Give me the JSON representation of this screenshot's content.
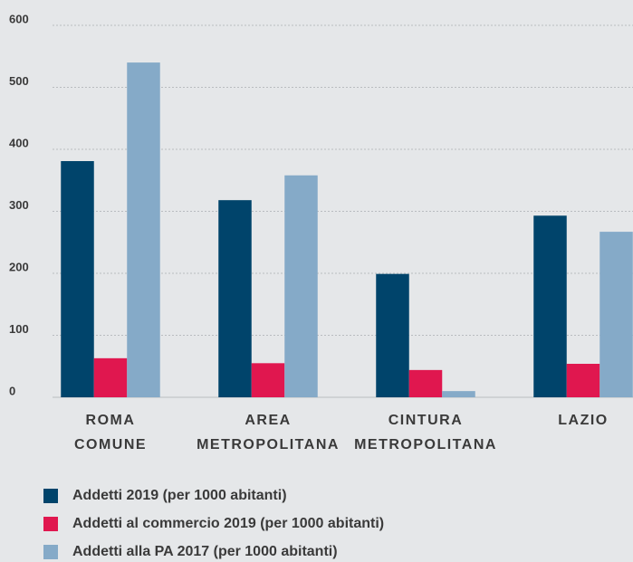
{
  "chart_data": {
    "type": "bar",
    "categories": [
      [
        "ROMA",
        "COMUNE"
      ],
      [
        "AREA",
        "METROPOLITANA"
      ],
      [
        "CINTURA",
        "METROPOLITANA"
      ],
      [
        "LAZIO"
      ]
    ],
    "series": [
      {
        "name": "Addetti 2019 (per 1000 abitanti)",
        "color": "#00446b",
        "values": [
          381,
          318,
          199,
          293
        ]
      },
      {
        "name": "Addetti al commercio 2019 (per 1000 abitanti)",
        "color": "#e0174f",
        "values": [
          63,
          55,
          44,
          54
        ]
      },
      {
        "name": "Addetti alla PA 2017 (per 1000 abitanti)",
        "color": "#85aac8",
        "values": [
          540,
          358,
          10,
          267
        ]
      }
    ],
    "ylim": [
      0,
      600
    ],
    "yticks": [
      0,
      100,
      200,
      300,
      400,
      500,
      600
    ],
    "grid": true
  }
}
